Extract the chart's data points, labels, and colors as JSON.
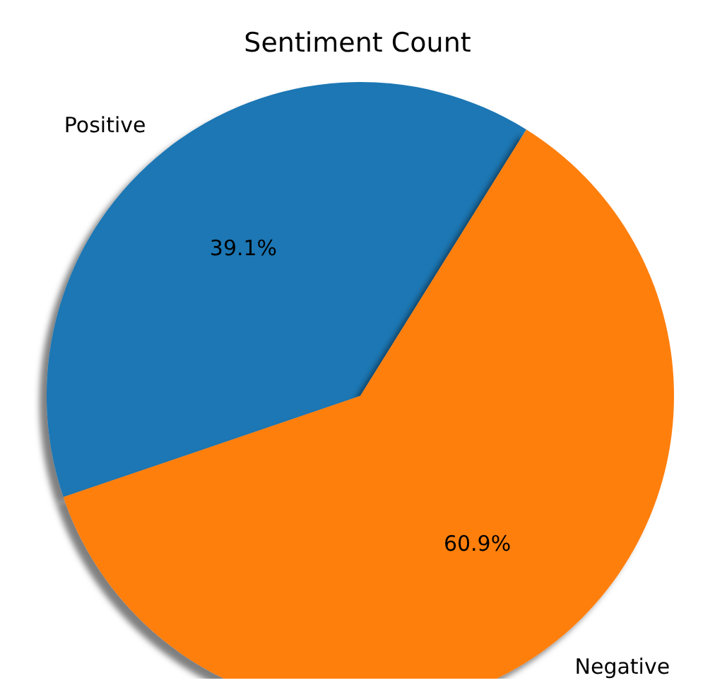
{
  "chart_data": {
    "type": "pie",
    "title": "Sentiment Count",
    "categories": [
      "Positive",
      "Negative"
    ],
    "values": [
      39.1,
      60.9
    ],
    "colors": [
      "#1f77b4",
      "#ff7f0e"
    ],
    "value_labels": [
      "39.1%",
      "60.9%"
    ]
  }
}
